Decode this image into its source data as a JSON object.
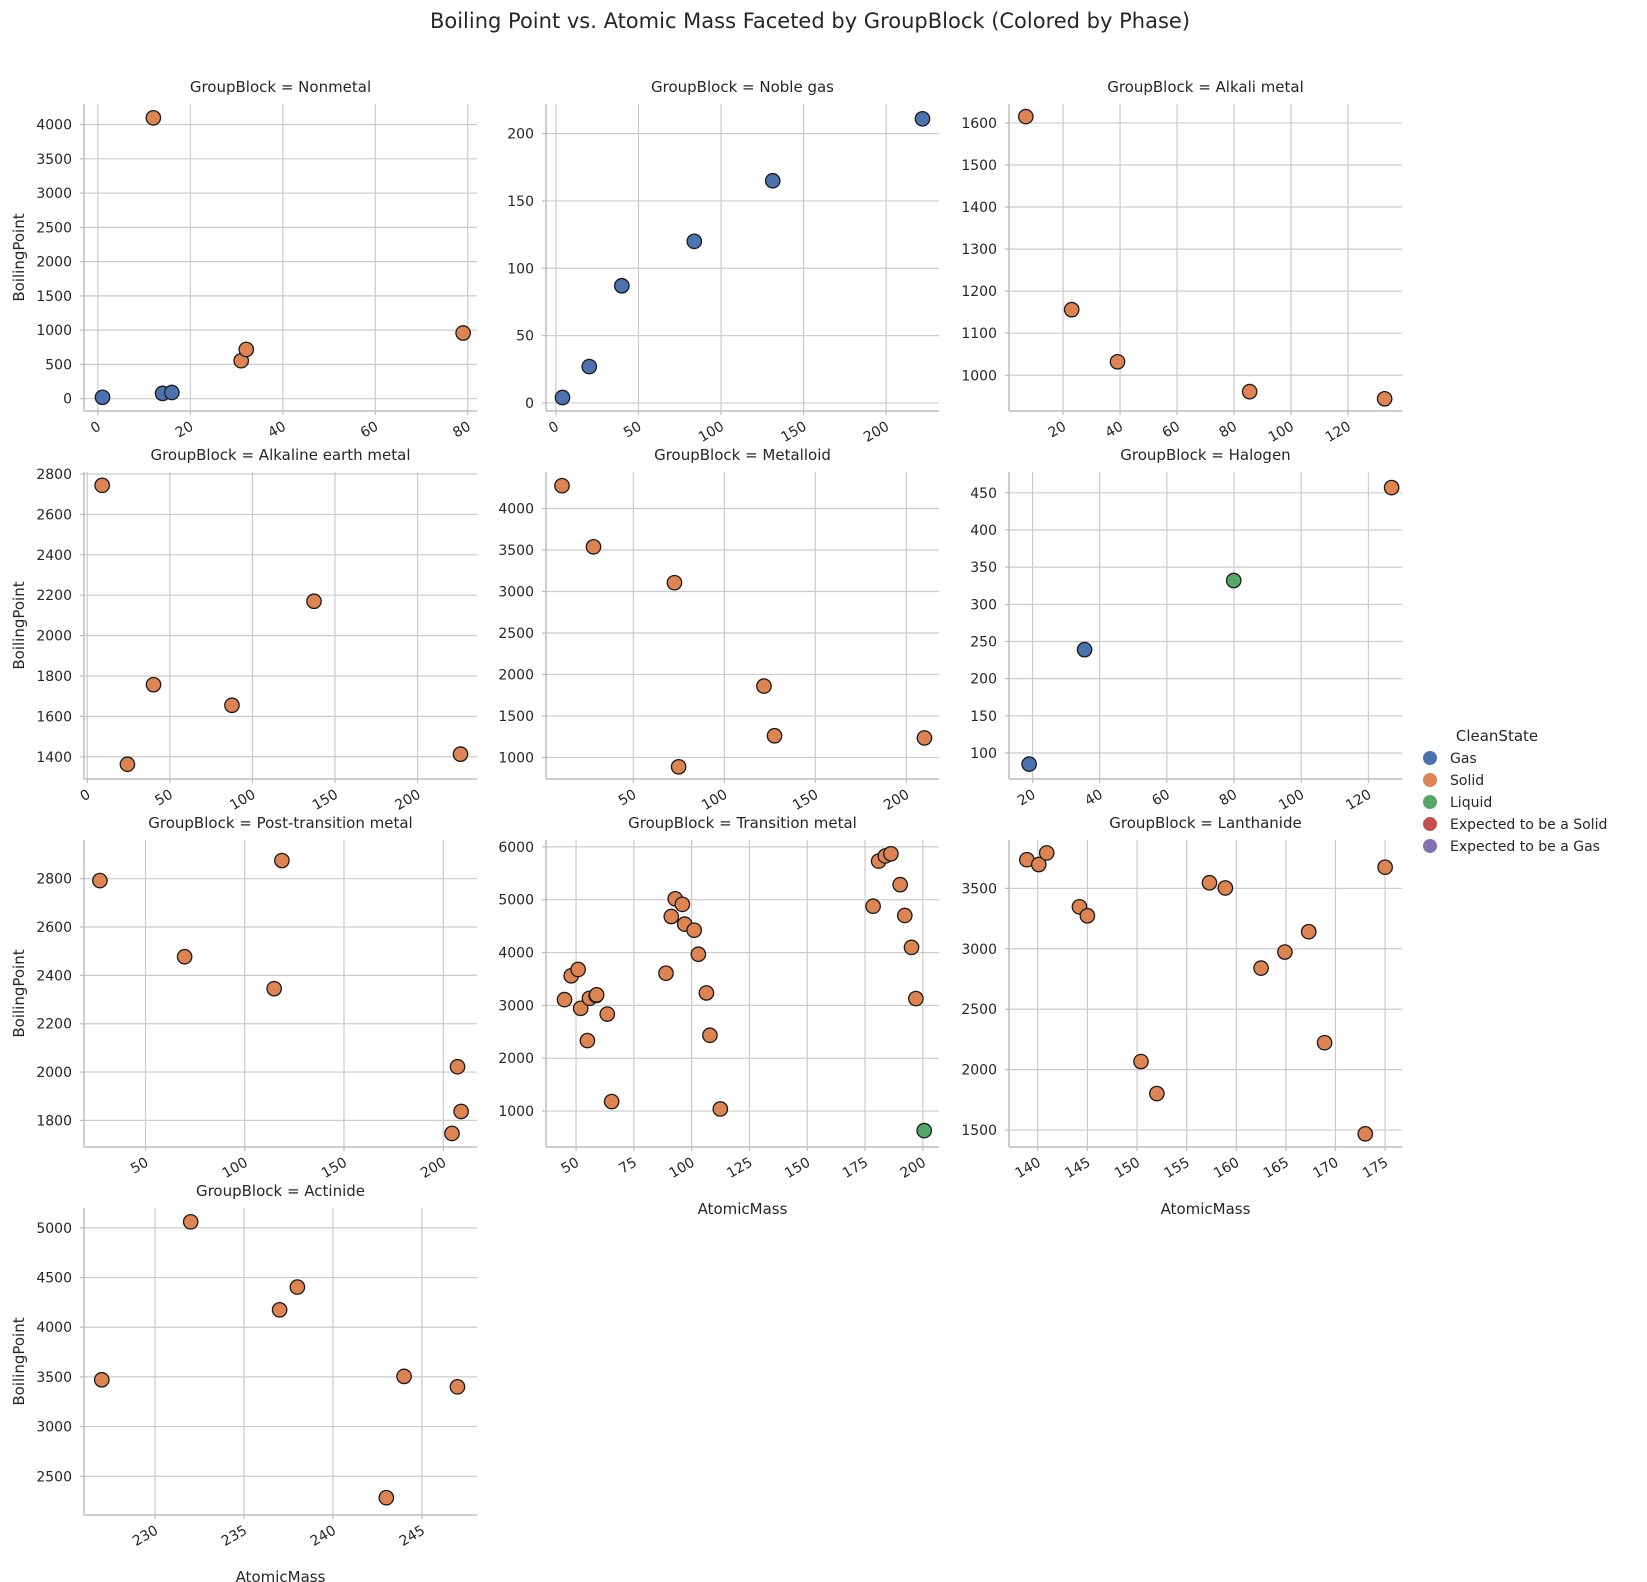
{
  "chart_data": {
    "type": "scatter",
    "title": "Boiling Point vs. Atomic Mass Faceted by GroupBlock (Colored by Phase)",
    "xlabel": "AtomicMass",
    "ylabel": "BoilingPoint",
    "grid": true,
    "legend": {
      "title": "CleanState",
      "placement": "right",
      "entries": [
        {
          "label": "Gas",
          "color": "#4c72b0"
        },
        {
          "label": "Solid",
          "color": "#dd8452"
        },
        {
          "label": "Liquid",
          "color": "#55a868"
        },
        {
          "label": "Expected to be a Solid",
          "color": "#c44e52"
        },
        {
          "label": "Expected to be a Gas",
          "color": "#8172b3"
        }
      ]
    },
    "facets": [
      {
        "title": "GroupBlock = Nonmetal",
        "xlim": [
          -3,
          82
        ],
        "ylim": [
          -180,
          4300
        ],
        "xticks": [
          0,
          20,
          40,
          60,
          80
        ],
        "yticks": [
          0,
          500,
          1000,
          1500,
          2000,
          2500,
          3000,
          3500,
          4000
        ],
        "points": [
          {
            "x": 1.0,
            "y": 20,
            "state": "Gas"
          },
          {
            "x": 12.0,
            "y": 4098,
            "state": "Solid"
          },
          {
            "x": 14.0,
            "y": 77,
            "state": "Gas"
          },
          {
            "x": 16.0,
            "y": 90,
            "state": "Gas"
          },
          {
            "x": 31.0,
            "y": 554,
            "state": "Solid"
          },
          {
            "x": 32.1,
            "y": 718,
            "state": "Solid"
          },
          {
            "x": 79.0,
            "y": 958,
            "state": "Solid"
          }
        ]
      },
      {
        "title": "GroupBlock = Noble gas",
        "xlim": [
          -6,
          232
        ],
        "ylim": [
          -6,
          222
        ],
        "xticks": [
          0,
          50,
          100,
          150,
          200
        ],
        "yticks": [
          0,
          50,
          100,
          150,
          200
        ],
        "points": [
          {
            "x": 4.0,
            "y": 4,
            "state": "Gas"
          },
          {
            "x": 20.2,
            "y": 27,
            "state": "Gas"
          },
          {
            "x": 39.9,
            "y": 87,
            "state": "Gas"
          },
          {
            "x": 83.8,
            "y": 120,
            "state": "Gas"
          },
          {
            "x": 131.3,
            "y": 165,
            "state": "Gas"
          },
          {
            "x": 222.0,
            "y": 211,
            "state": "Gas"
          }
        ]
      },
      {
        "title": "GroupBlock = Alkali metal",
        "xlim": [
          1,
          139
        ],
        "ylim": [
          915,
          1645
        ],
        "xticks": [
          20,
          40,
          60,
          80,
          100,
          120
        ],
        "yticks": [
          1000,
          1100,
          1200,
          1300,
          1400,
          1500,
          1600
        ],
        "points": [
          {
            "x": 6.9,
            "y": 1615,
            "state": "Solid"
          },
          {
            "x": 23.0,
            "y": 1156,
            "state": "Solid"
          },
          {
            "x": 39.1,
            "y": 1032,
            "state": "Solid"
          },
          {
            "x": 85.5,
            "y": 961,
            "state": "Solid"
          },
          {
            "x": 132.9,
            "y": 944,
            "state": "Solid"
          }
        ]
      },
      {
        "title": "GroupBlock = Alkaline earth metal",
        "xlim": [
          -2,
          236
        ],
        "ylim": [
          1290,
          2810
        ],
        "xticks": [
          0,
          50,
          100,
          150,
          200
        ],
        "yticks": [
          1400,
          1600,
          1800,
          2000,
          2200,
          2400,
          2600,
          2800
        ],
        "points": [
          {
            "x": 9.0,
            "y": 2744,
            "state": "Solid"
          },
          {
            "x": 24.3,
            "y": 1363,
            "state": "Solid"
          },
          {
            "x": 40.1,
            "y": 1757,
            "state": "Solid"
          },
          {
            "x": 87.6,
            "y": 1655,
            "state": "Solid"
          },
          {
            "x": 137.3,
            "y": 2170,
            "state": "Solid"
          },
          {
            "x": 226.0,
            "y": 1413,
            "state": "Solid"
          }
        ]
      },
      {
        "title": "GroupBlock = Metalloid",
        "xlim": [
          2,
          218
        ],
        "ylim": [
          740,
          4440
        ],
        "xticks": [
          50,
          100,
          150,
          200
        ],
        "yticks": [
          1000,
          1500,
          2000,
          2500,
          3000,
          3500,
          4000
        ],
        "points": [
          {
            "x": 10.8,
            "y": 4275,
            "state": "Solid"
          },
          {
            "x": 28.1,
            "y": 3538,
            "state": "Solid"
          },
          {
            "x": 72.6,
            "y": 3106,
            "state": "Solid"
          },
          {
            "x": 74.9,
            "y": 887,
            "state": "Solid"
          },
          {
            "x": 121.8,
            "y": 1860,
            "state": "Solid"
          },
          {
            "x": 127.6,
            "y": 1261,
            "state": "Solid"
          },
          {
            "x": 210.0,
            "y": 1235,
            "state": "Solid"
          }
        ]
      },
      {
        "title": "GroupBlock = Halogen",
        "xlim": [
          13,
          130
        ],
        "ylim": [
          65,
          478
        ],
        "xticks": [
          20,
          40,
          60,
          80,
          100,
          120
        ],
        "yticks": [
          100,
          150,
          200,
          250,
          300,
          350,
          400,
          450
        ],
        "points": [
          {
            "x": 19.0,
            "y": 85,
            "state": "Gas"
          },
          {
            "x": 35.5,
            "y": 239,
            "state": "Gas"
          },
          {
            "x": 79.9,
            "y": 332,
            "state": "Liquid"
          },
          {
            "x": 126.9,
            "y": 457,
            "state": "Solid"
          }
        ]
      },
      {
        "title": "GroupBlock = Post-transition metal",
        "xlim": [
          19,
          217
        ],
        "ylim": [
          1690,
          2960
        ],
        "xticks": [
          50,
          100,
          150,
          200
        ],
        "yticks": [
          1800,
          2000,
          2200,
          2400,
          2600,
          2800
        ],
        "points": [
          {
            "x": 27.0,
            "y": 2792,
            "state": "Solid"
          },
          {
            "x": 69.7,
            "y": 2477,
            "state": "Solid"
          },
          {
            "x": 114.8,
            "y": 2345,
            "state": "Solid"
          },
          {
            "x": 118.7,
            "y": 2875,
            "state": "Solid"
          },
          {
            "x": 204.4,
            "y": 1746,
            "state": "Solid"
          },
          {
            "x": 207.2,
            "y": 2022,
            "state": "Solid"
          },
          {
            "x": 209.0,
            "y": 1837,
            "state": "Solid"
          }
        ]
      },
      {
        "title": "GroupBlock = Transition metal",
        "xlim": [
          37,
          207
        ],
        "ylim": [
          320,
          6130
        ],
        "xticks": [
          50,
          75,
          100,
          125,
          150,
          175,
          200
        ],
        "yticks": [
          1000,
          2000,
          3000,
          4000,
          5000,
          6000
        ],
        "points": [
          {
            "x": 45.0,
            "y": 3109,
            "state": "Solid"
          },
          {
            "x": 47.9,
            "y": 3560,
            "state": "Solid"
          },
          {
            "x": 50.9,
            "y": 3680,
            "state": "Solid"
          },
          {
            "x": 52.0,
            "y": 2944,
            "state": "Solid"
          },
          {
            "x": 54.9,
            "y": 2334,
            "state": "Solid"
          },
          {
            "x": 55.8,
            "y": 3134,
            "state": "Solid"
          },
          {
            "x": 58.7,
            "y": 3186,
            "state": "Solid"
          },
          {
            "x": 58.9,
            "y": 3200,
            "state": "Solid"
          },
          {
            "x": 63.5,
            "y": 2835,
            "state": "Solid"
          },
          {
            "x": 65.4,
            "y": 1180,
            "state": "Solid"
          },
          {
            "x": 88.9,
            "y": 3609,
            "state": "Solid"
          },
          {
            "x": 91.2,
            "y": 4682,
            "state": "Solid"
          },
          {
            "x": 92.9,
            "y": 5017,
            "state": "Solid"
          },
          {
            "x": 96.0,
            "y": 4912,
            "state": "Solid"
          },
          {
            "x": 97.0,
            "y": 4538,
            "state": "Solid"
          },
          {
            "x": 101.1,
            "y": 4423,
            "state": "Solid"
          },
          {
            "x": 102.9,
            "y": 3968,
            "state": "Solid"
          },
          {
            "x": 106.4,
            "y": 3236,
            "state": "Solid"
          },
          {
            "x": 107.9,
            "y": 2435,
            "state": "Solid"
          },
          {
            "x": 112.4,
            "y": 1040,
            "state": "Solid"
          },
          {
            "x": 178.5,
            "y": 4876,
            "state": "Solid"
          },
          {
            "x": 180.9,
            "y": 5731,
            "state": "Solid"
          },
          {
            "x": 183.8,
            "y": 5828,
            "state": "Solid"
          },
          {
            "x": 186.2,
            "y": 5869,
            "state": "Solid"
          },
          {
            "x": 190.2,
            "y": 5285,
            "state": "Solid"
          },
          {
            "x": 192.2,
            "y": 4701,
            "state": "Solid"
          },
          {
            "x": 195.1,
            "y": 4098,
            "state": "Solid"
          },
          {
            "x": 197.0,
            "y": 3129,
            "state": "Solid"
          },
          {
            "x": 200.6,
            "y": 630,
            "state": "Liquid"
          }
        ]
      },
      {
        "title": "GroupBlock = Lanthanide",
        "xlim": [
          137.1,
          176.7
        ],
        "ylim": [
          1360,
          3900
        ],
        "xticks": [
          140,
          145,
          150,
          155,
          160,
          165,
          170,
          175
        ],
        "yticks": [
          1500,
          2000,
          2500,
          3000,
          3500
        ],
        "points": [
          {
            "x": 138.9,
            "y": 3737,
            "state": "Solid"
          },
          {
            "x": 140.1,
            "y": 3697,
            "state": "Solid"
          },
          {
            "x": 140.9,
            "y": 3793,
            "state": "Solid"
          },
          {
            "x": 144.2,
            "y": 3347,
            "state": "Solid"
          },
          {
            "x": 145.0,
            "y": 3273,
            "state": "Solid"
          },
          {
            "x": 150.4,
            "y": 2067,
            "state": "Solid"
          },
          {
            "x": 152.0,
            "y": 1802,
            "state": "Solid"
          },
          {
            "x": 157.3,
            "y": 3546,
            "state": "Solid"
          },
          {
            "x": 158.9,
            "y": 3503,
            "state": "Solid"
          },
          {
            "x": 162.5,
            "y": 2840,
            "state": "Solid"
          },
          {
            "x": 164.9,
            "y": 2973,
            "state": "Solid"
          },
          {
            "x": 167.3,
            "y": 3141,
            "state": "Solid"
          },
          {
            "x": 168.9,
            "y": 2223,
            "state": "Solid"
          },
          {
            "x": 173.0,
            "y": 1469,
            "state": "Solid"
          },
          {
            "x": 175.0,
            "y": 3675,
            "state": "Solid"
          }
        ]
      },
      {
        "title": "GroupBlock = Actinide",
        "xlim": [
          226,
          248.1
        ],
        "ylim": [
          2110,
          5200
        ],
        "xticks": [
          230,
          235,
          240,
          245
        ],
        "yticks": [
          2500,
          3000,
          3500,
          4000,
          4500,
          5000
        ],
        "points": [
          {
            "x": 227.0,
            "y": 3471,
            "state": "Solid"
          },
          {
            "x": 232.0,
            "y": 5061,
            "state": "Solid"
          },
          {
            "x": 237.0,
            "y": 4175,
            "state": "Solid"
          },
          {
            "x": 238.0,
            "y": 4404,
            "state": "Solid"
          },
          {
            "x": 243.0,
            "y": 2284,
            "state": "Solid"
          },
          {
            "x": 244.0,
            "y": 3505,
            "state": "Solid"
          },
          {
            "x": 247.0,
            "y": 3400,
            "state": "Solid"
          }
        ]
      }
    ]
  }
}
